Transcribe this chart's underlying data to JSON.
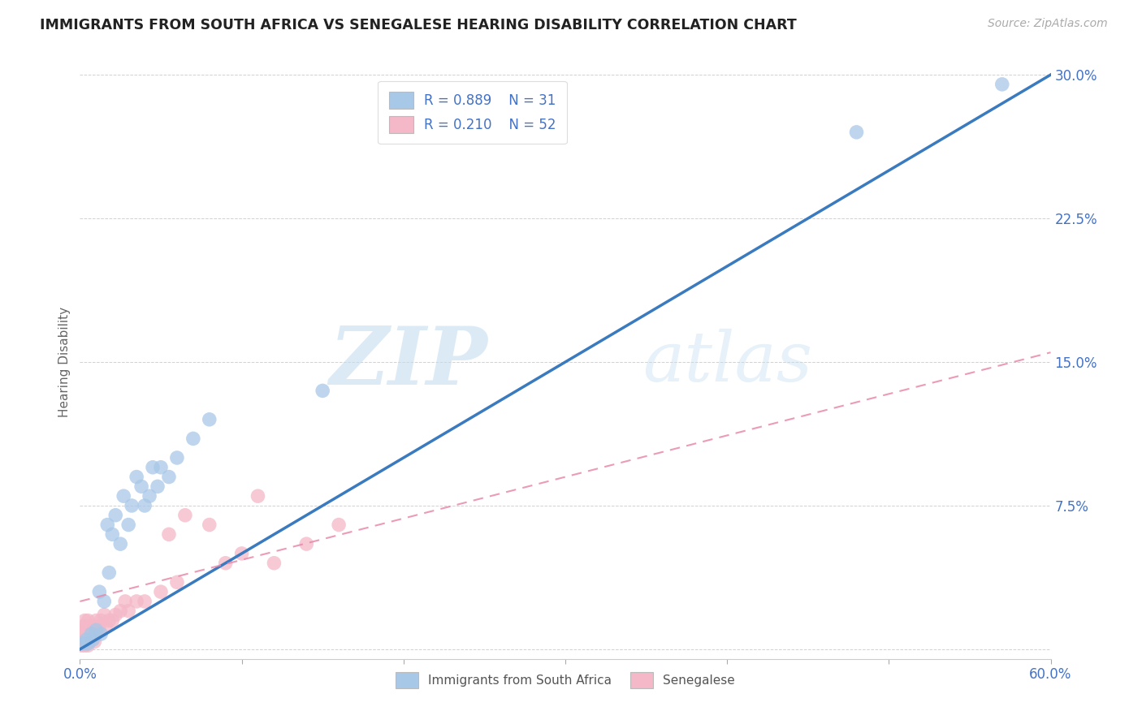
{
  "title": "IMMIGRANTS FROM SOUTH AFRICA VS SENEGALESE HEARING DISABILITY CORRELATION CHART",
  "source": "Source: ZipAtlas.com",
  "ylabel": "Hearing Disability",
  "xlim": [
    0.0,
    0.6
  ],
  "ylim": [
    -0.005,
    0.305
  ],
  "xticks": [
    0.0,
    0.1,
    0.2,
    0.3,
    0.4,
    0.5,
    0.6
  ],
  "yticks": [
    0.0,
    0.075,
    0.15,
    0.225,
    0.3
  ],
  "ytick_labels": [
    "",
    "7.5%",
    "15.0%",
    "22.5%",
    "30.0%"
  ],
  "xtick_labels": [
    "0.0%",
    "",
    "",
    "",
    "",
    "",
    "60.0%"
  ],
  "legend_r1": "R = 0.889",
  "legend_n1": "N = 31",
  "legend_r2": "R = 0.210",
  "legend_n2": "N = 52",
  "blue_color": "#a8c8e8",
  "blue_line_color": "#3a7abf",
  "pink_color": "#f4b8c8",
  "pink_line_color": "#e88aaa",
  "watermark_zip": "ZIP",
  "watermark_atlas": "atlas",
  "background_color": "#ffffff",
  "blue_points_x": [
    0.002,
    0.004,
    0.005,
    0.007,
    0.008,
    0.01,
    0.012,
    0.013,
    0.015,
    0.017,
    0.018,
    0.02,
    0.022,
    0.025,
    0.027,
    0.03,
    0.032,
    0.035,
    0.038,
    0.04,
    0.043,
    0.045,
    0.048,
    0.05,
    0.055,
    0.06,
    0.07,
    0.08,
    0.15,
    0.48,
    0.57
  ],
  "blue_points_y": [
    0.003,
    0.005,
    0.003,
    0.008,
    0.005,
    0.01,
    0.03,
    0.008,
    0.025,
    0.065,
    0.04,
    0.06,
    0.07,
    0.055,
    0.08,
    0.065,
    0.075,
    0.09,
    0.085,
    0.075,
    0.08,
    0.095,
    0.085,
    0.095,
    0.09,
    0.1,
    0.11,
    0.12,
    0.135,
    0.27,
    0.295
  ],
  "pink_points_x": [
    0.001,
    0.001,
    0.001,
    0.002,
    0.002,
    0.002,
    0.003,
    0.003,
    0.003,
    0.003,
    0.004,
    0.004,
    0.004,
    0.005,
    0.005,
    0.005,
    0.005,
    0.006,
    0.006,
    0.006,
    0.007,
    0.007,
    0.008,
    0.008,
    0.009,
    0.009,
    0.01,
    0.01,
    0.011,
    0.012,
    0.013,
    0.015,
    0.016,
    0.018,
    0.02,
    0.022,
    0.025,
    0.028,
    0.03,
    0.035,
    0.04,
    0.05,
    0.055,
    0.06,
    0.065,
    0.08,
    0.09,
    0.1,
    0.11,
    0.12,
    0.14,
    0.16
  ],
  "pink_points_y": [
    0.002,
    0.005,
    0.01,
    0.003,
    0.007,
    0.012,
    0.002,
    0.005,
    0.008,
    0.015,
    0.003,
    0.006,
    0.01,
    0.002,
    0.005,
    0.008,
    0.015,
    0.004,
    0.008,
    0.012,
    0.005,
    0.01,
    0.006,
    0.012,
    0.004,
    0.01,
    0.008,
    0.015,
    0.01,
    0.012,
    0.015,
    0.018,
    0.012,
    0.015,
    0.015,
    0.018,
    0.02,
    0.025,
    0.02,
    0.025,
    0.025,
    0.03,
    0.06,
    0.035,
    0.07,
    0.065,
    0.045,
    0.05,
    0.08,
    0.045,
    0.055,
    0.065
  ],
  "blue_line_x0": 0.0,
  "blue_line_y0": 0.0,
  "blue_line_x1": 0.6,
  "blue_line_y1": 0.3,
  "pink_line_x0": 0.0,
  "pink_line_y0": 0.025,
  "pink_line_x1": 0.6,
  "pink_line_y1": 0.155
}
